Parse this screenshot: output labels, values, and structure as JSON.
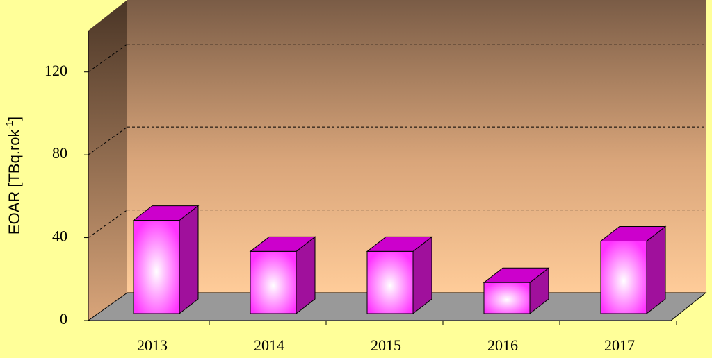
{
  "chart_data": {
    "type": "bar3d",
    "y_label": [
      "EOAR [TBq.rok",
      "-1",
      "]"
    ],
    "categories": [
      "2013",
      "2014",
      "2015",
      "2016",
      "2017"
    ],
    "values": [
      45,
      30,
      30,
      15,
      35
    ],
    "color": "#cc00cc",
    "ylim": [
      0,
      140
    ],
    "yticks": [
      0,
      40,
      80,
      120
    ],
    "grid": true
  }
}
